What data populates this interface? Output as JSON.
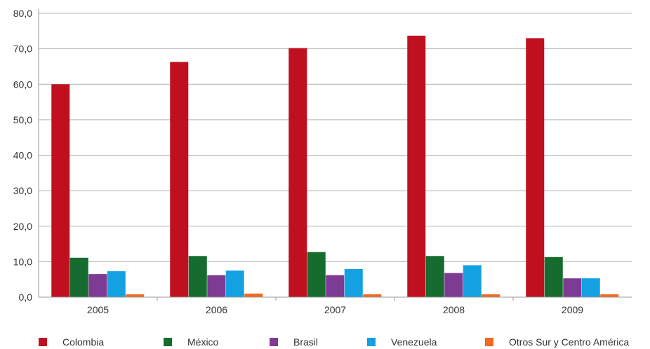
{
  "chart_data": {
    "type": "bar",
    "categories": [
      "2005",
      "2006",
      "2007",
      "2008",
      "2009"
    ],
    "series": [
      {
        "name": "Colombia",
        "color": "#c0101f",
        "values": [
          60.0,
          66.3,
          70.2,
          73.7,
          73.0
        ]
      },
      {
        "name": "México",
        "color": "#166b2e",
        "values": [
          11.1,
          11.6,
          12.7,
          11.6,
          11.3
        ]
      },
      {
        "name": "Brasil",
        "color": "#7e3b93",
        "values": [
          6.5,
          6.2,
          6.2,
          6.8,
          5.3
        ]
      },
      {
        "name": "Venezuela",
        "color": "#13a1e1",
        "values": [
          7.3,
          7.5,
          7.9,
          9.0,
          5.3
        ]
      },
      {
        "name": "Otros Sur y Centro América",
        "color": "#f26a1b",
        "values": [
          0.8,
          1.0,
          0.8,
          0.8,
          0.8
        ]
      }
    ],
    "y_ticks": [
      "0,0",
      "10,0",
      "20,0",
      "30,0",
      "40,0",
      "50,0",
      "60,0",
      "70,0",
      "80,0"
    ],
    "ylim": [
      0,
      80
    ],
    "grid": true,
    "legend_position": "bottom"
  }
}
